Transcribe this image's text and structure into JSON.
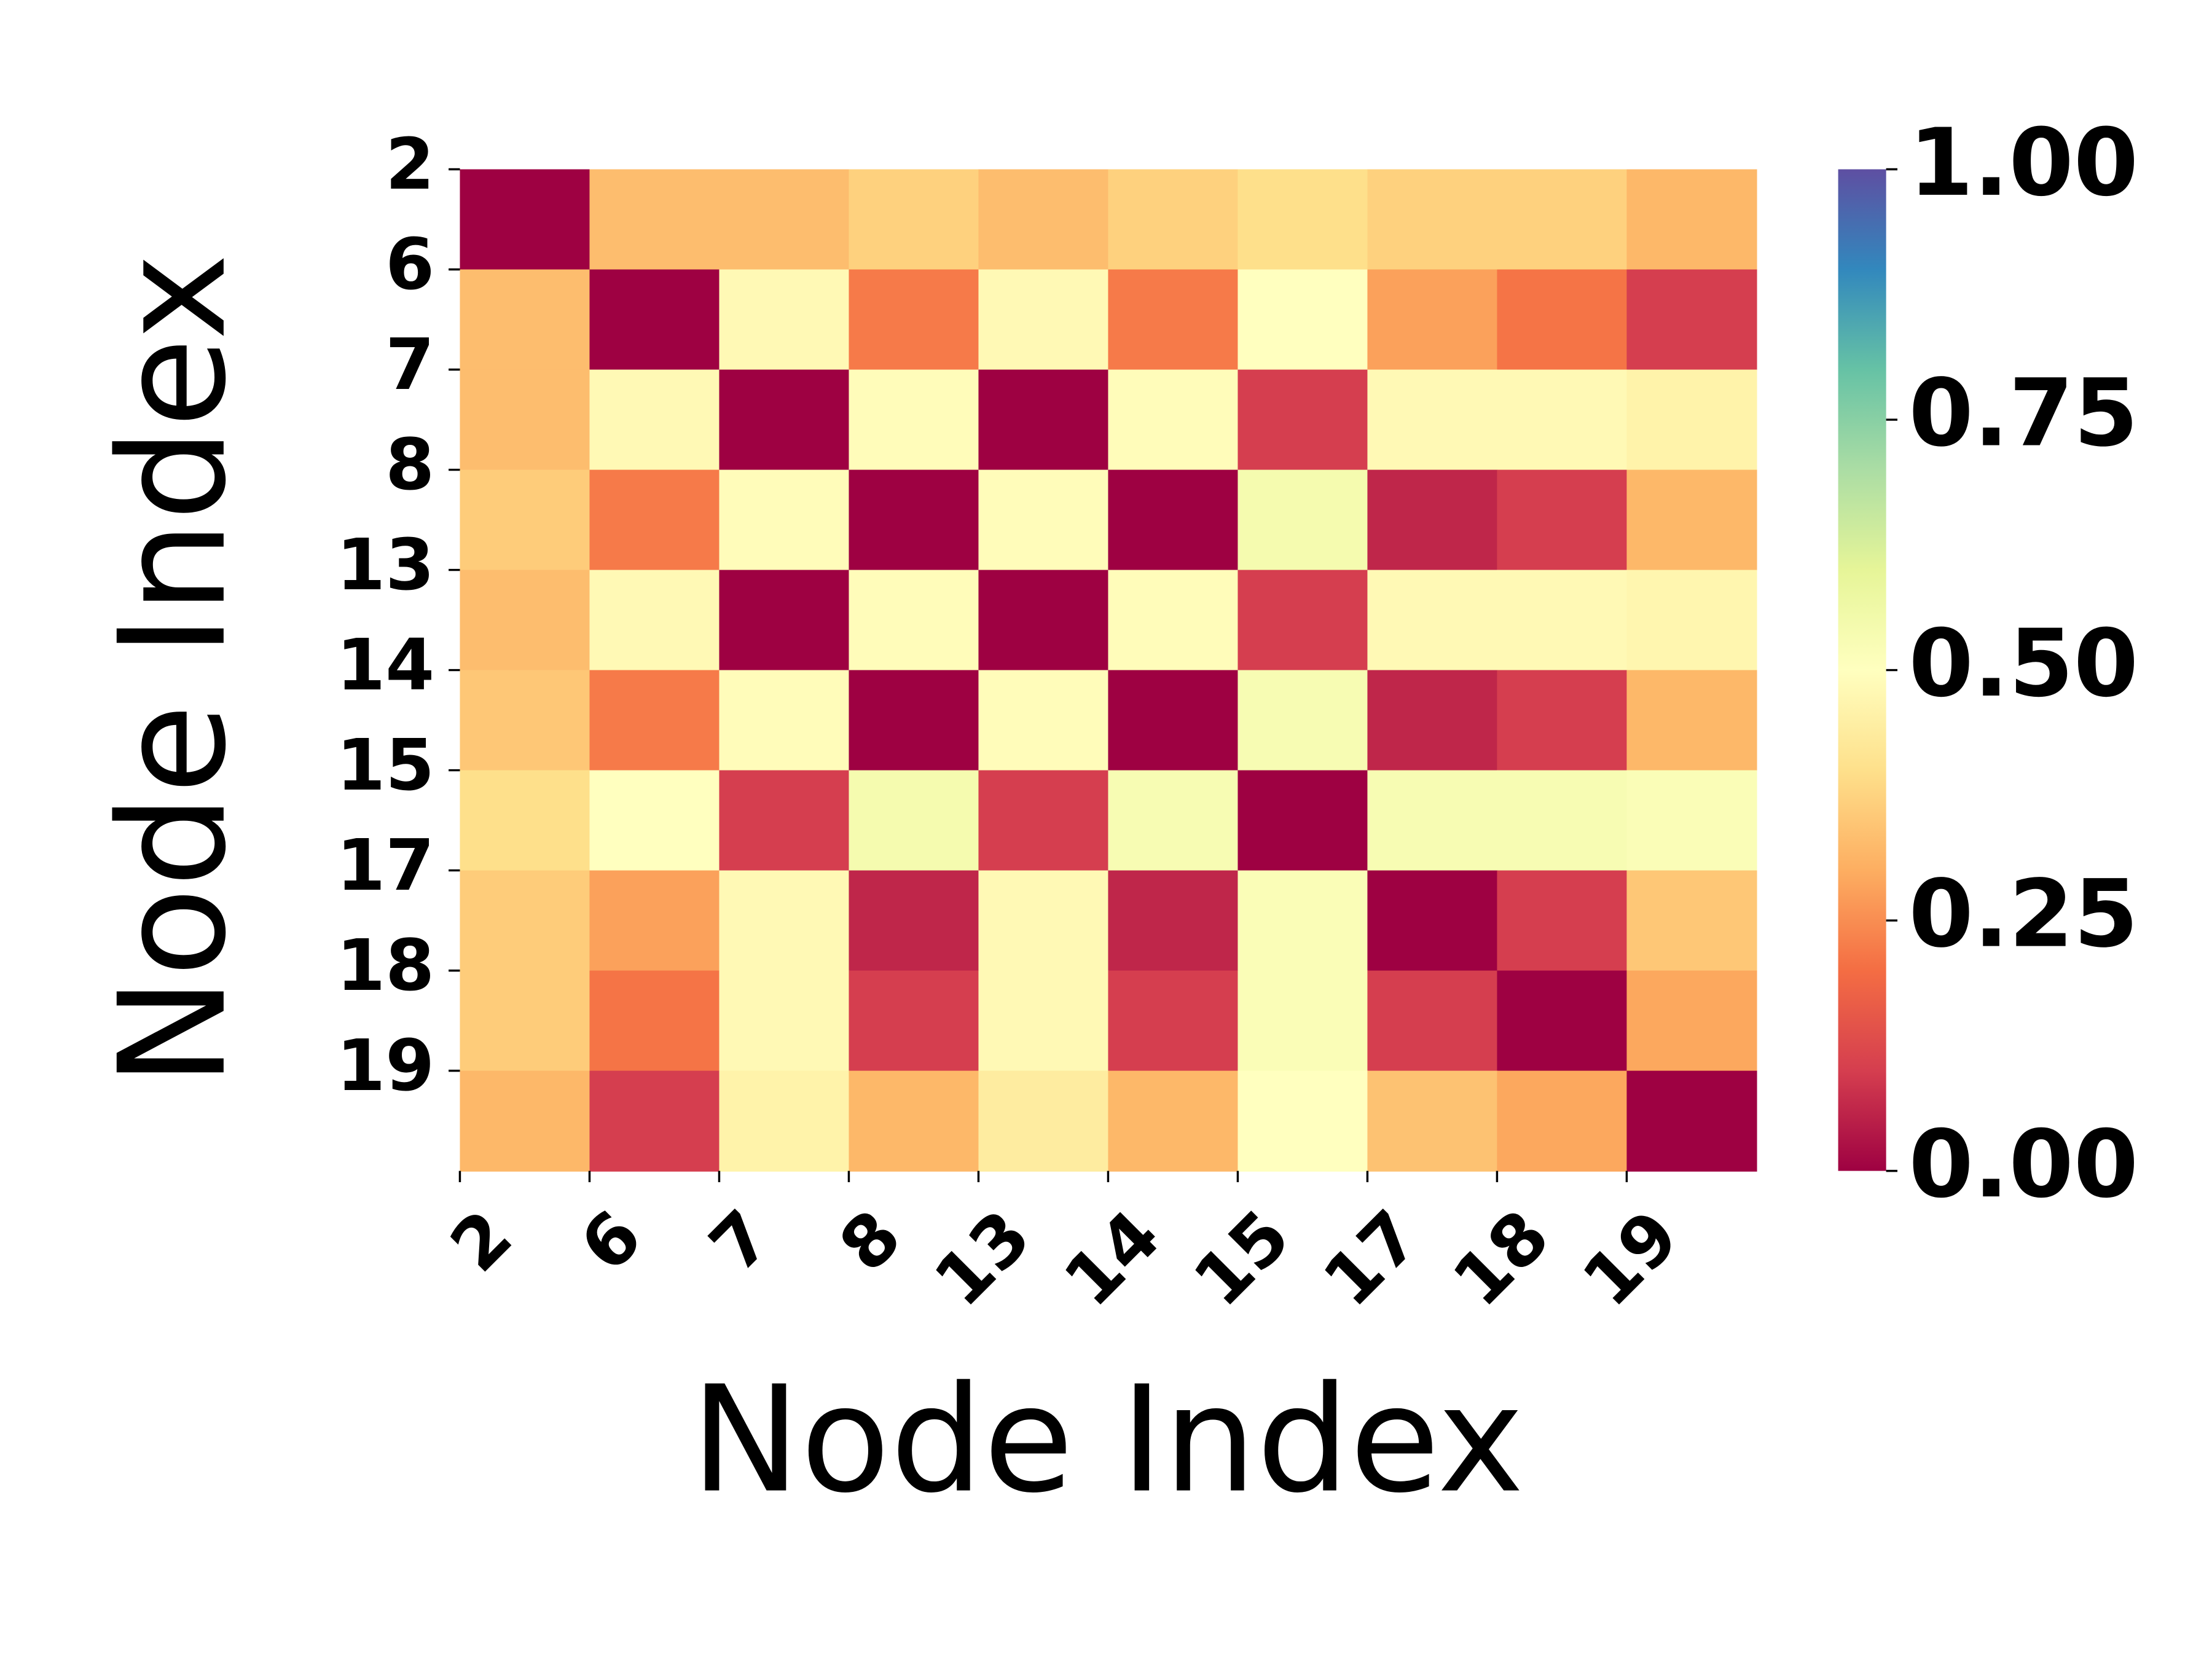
{
  "chart_data": {
    "type": "heatmap",
    "xlabel": "Node Index",
    "ylabel": "Node Index",
    "categories": [
      "2",
      "6",
      "7",
      "8",
      "13",
      "14",
      "15",
      "17",
      "18",
      "19"
    ],
    "z": [
      [
        0,
        0.33,
        0.33,
        0.37,
        0.33,
        0.37,
        0.4,
        0.37,
        0.37,
        0.32
      ],
      [
        0.33,
        0,
        0.48,
        0.22,
        0.48,
        0.22,
        0.5,
        0.28,
        0.21,
        0.1
      ],
      [
        0.33,
        0.48,
        0,
        0.49,
        0,
        0.49,
        0.1,
        0.48,
        0.48,
        0.46
      ],
      [
        0.36,
        0.22,
        0.49,
        0,
        0.49,
        0,
        0.54,
        0.06,
        0.1,
        0.32
      ],
      [
        0.33,
        0.48,
        0,
        0.49,
        0,
        0.49,
        0.1,
        0.48,
        0.48,
        0.47
      ],
      [
        0.35,
        0.22,
        0.49,
        0,
        0.49,
        0,
        0.53,
        0.06,
        0.1,
        0.32
      ],
      [
        0.4,
        0.5,
        0.1,
        0.54,
        0.1,
        0.53,
        0,
        0.53,
        0.53,
        0.52
      ],
      [
        0.36,
        0.28,
        0.48,
        0.06,
        0.48,
        0.06,
        0.52,
        0,
        0.1,
        0.35
      ],
      [
        0.36,
        0.21,
        0.48,
        0.1,
        0.48,
        0.1,
        0.52,
        0.1,
        0,
        0.29
      ],
      [
        0.32,
        0.1,
        0.46,
        0.32,
        0.44,
        0.32,
        0.5,
        0.34,
        0.29,
        0
      ]
    ],
    "colorscale": [
      "#9e0142",
      "#d53e4f",
      "#f46d43",
      "#fdae61",
      "#fee08b",
      "#ffffbf",
      "#e6f598",
      "#abdda4",
      "#66c2a5",
      "#3288bd",
      "#5e4fa2"
    ],
    "clim": [
      0,
      1
    ],
    "cticks": [
      {
        "value": 0,
        "label": "0.00"
      },
      {
        "value": 0.25,
        "label": "0.25"
      },
      {
        "value": 0.5,
        "label": "0.50"
      },
      {
        "value": 0.75,
        "label": "0.75"
      },
      {
        "value": 1,
        "label": "1.00"
      }
    ]
  }
}
